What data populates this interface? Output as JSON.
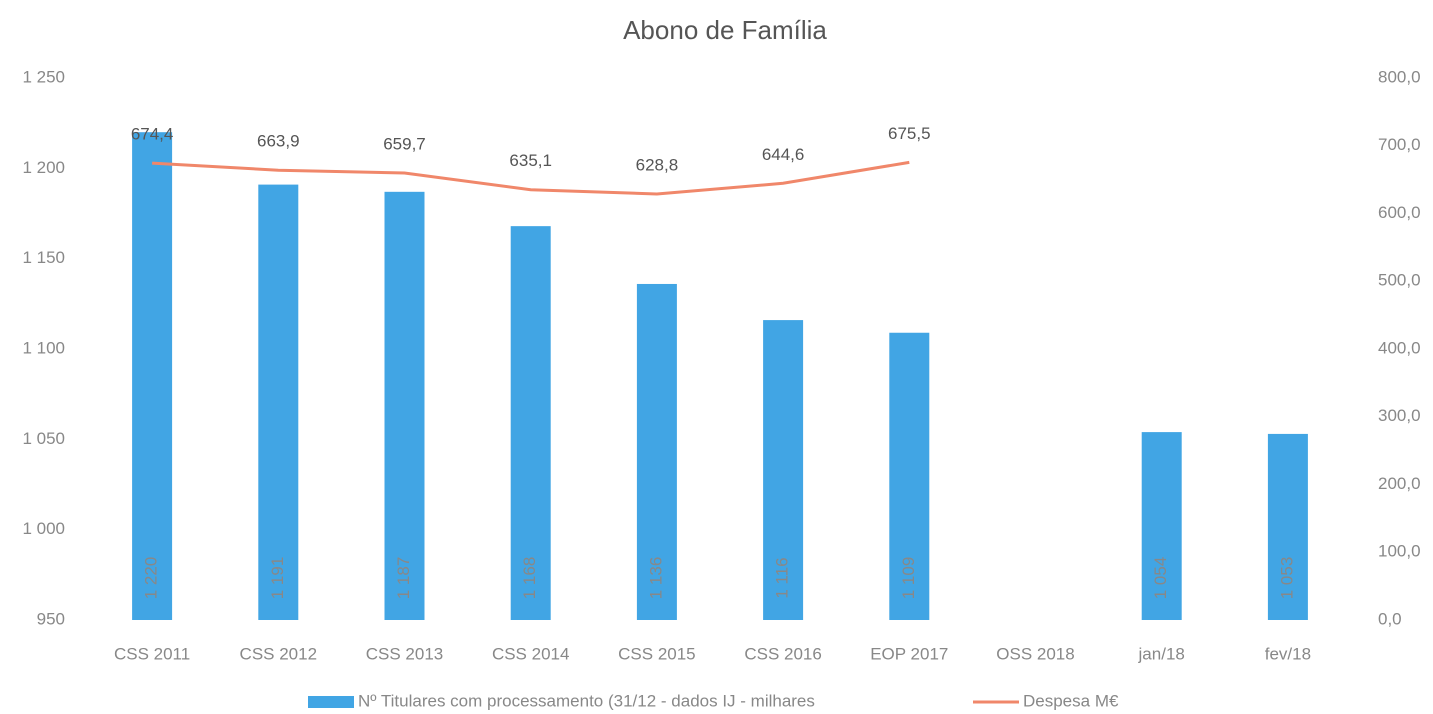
{
  "chart_data": {
    "type": "bar_line",
    "title": "Abono de Família",
    "categories": [
      "CSS 2011",
      "CSS 2012",
      "CSS 2013",
      "CSS 2014",
      "CSS 2015",
      "CSS 2016",
      "EOP 2017",
      "OSS 2018",
      "jan/18",
      "fev/18"
    ],
    "series": [
      {
        "name": "Nº Titulares com processamento (31/12 - dados IJ - milhares",
        "type": "bar",
        "color": "#41a5e4",
        "values": [
          1220,
          1191,
          1187,
          1168,
          1136,
          1116,
          1109,
          null,
          1054,
          1053
        ],
        "value_labels": [
          "1 220",
          "1 191",
          "1 187",
          "1 168",
          "1 136",
          "1 116",
          "1 109",
          null,
          "1 054",
          "1 053"
        ]
      },
      {
        "name": "Despesa M€",
        "type": "line",
        "axis": "y2",
        "color": "#f0876a",
        "values": [
          674.4,
          663.9,
          659.7,
          635.1,
          628.8,
          644.6,
          675.5,
          null,
          null,
          null
        ],
        "value_labels": [
          "674,4",
          "663,9",
          "659,7",
          "635,1",
          "628,8",
          "644,6",
          "675,5",
          null,
          null,
          null
        ]
      }
    ],
    "ylim": [
      950,
      1250
    ],
    "yticks": [
      950,
      {
        "value": 1000,
        "label": "1 000"
      },
      {
        "value": 1050,
        "label": "1 050"
      },
      {
        "value": 1100,
        "label": "1 100"
      },
      {
        "value": 1150,
        "label": "1 150"
      },
      {
        "value": 1200,
        "label": "1 200"
      },
      {
        "value": 1250,
        "label": "1 250"
      }
    ],
    "y2lim": [
      0,
      800
    ],
    "y2ticks": [
      {
        "value": 0,
        "label": "0,0"
      },
      {
        "value": 100,
        "label": "100,0"
      },
      {
        "value": 200,
        "label": "200,0"
      },
      {
        "value": 300,
        "label": "300,0"
      },
      {
        "value": 400,
        "label": "400,0"
      },
      {
        "value": 500,
        "label": "500,0"
      },
      {
        "value": 600,
        "label": "600,0"
      },
      {
        "value": 700,
        "label": "700,0"
      },
      {
        "value": 800,
        "label": "800,0"
      }
    ],
    "legend": "bottom"
  }
}
